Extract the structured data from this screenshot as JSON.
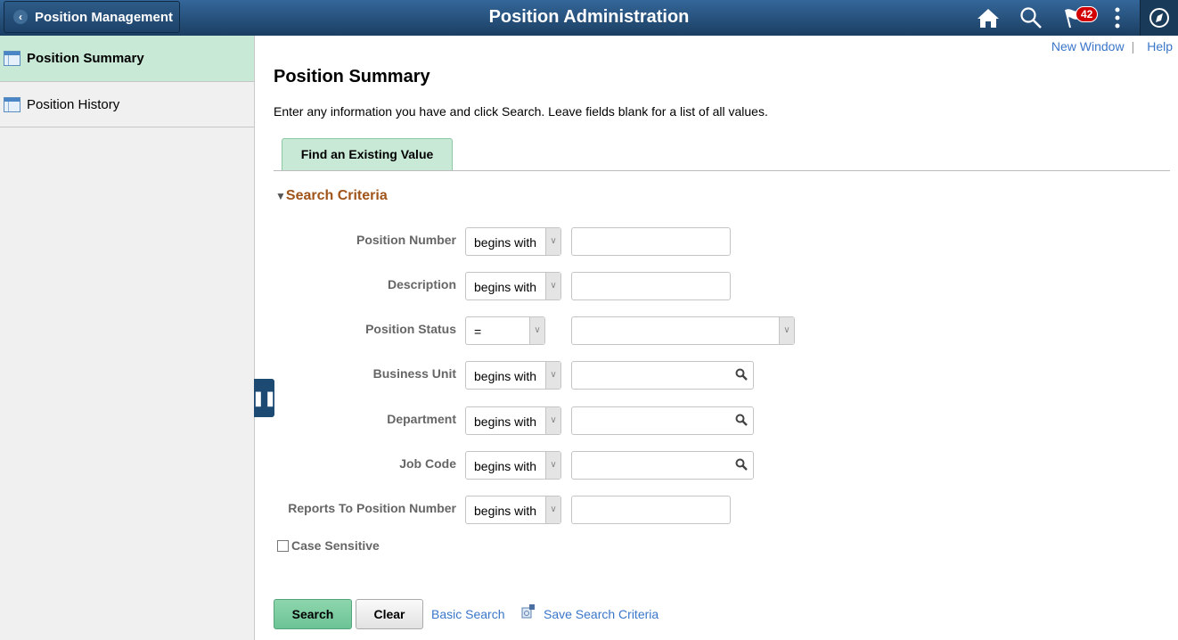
{
  "header": {
    "back_label": "Position Management",
    "title": "Position Administration",
    "notification_count": "42",
    "icons": [
      "home-icon",
      "search-icon",
      "flag-icon",
      "more-vertical-icon",
      "navbar-compass-icon"
    ]
  },
  "sidebar": {
    "items": [
      {
        "label": "Position Summary",
        "selected": true
      },
      {
        "label": "Position History",
        "selected": false
      }
    ]
  },
  "top_links": {
    "new_window": "New Window",
    "separator": "|",
    "help": "Help"
  },
  "page": {
    "title": "Position Summary",
    "instructions": "Enter any information you have and click Search. Leave fields blank for a list of all values.",
    "tab": "Find an Existing Value",
    "section": "Search Criteria"
  },
  "fields": [
    {
      "label": "Position Number",
      "operator": "begins with",
      "value": ""
    },
    {
      "label": "Description",
      "operator": "begins with",
      "value": ""
    },
    {
      "label": "Position Status",
      "operator": "=",
      "value": ""
    },
    {
      "label": "Business Unit",
      "operator": "begins with",
      "value": ""
    },
    {
      "label": "Department",
      "operator": "begins with",
      "value": ""
    },
    {
      "label": "Job Code",
      "operator": "begins with",
      "value": ""
    },
    {
      "label": "Reports To Position Number",
      "operator": "begins with",
      "value": ""
    }
  ],
  "case_sensitive": {
    "label": "Case Sensitive",
    "checked": false
  },
  "actions": {
    "search": "Search",
    "clear": "Clear",
    "basic_search": "Basic Search",
    "save_criteria": "Save Search Criteria"
  },
  "colors": {
    "header": "#1b3e62",
    "selected": "#c8e9d6",
    "link": "#3a76c9",
    "section": "#a0541a",
    "search_button": "#6cc395"
  }
}
